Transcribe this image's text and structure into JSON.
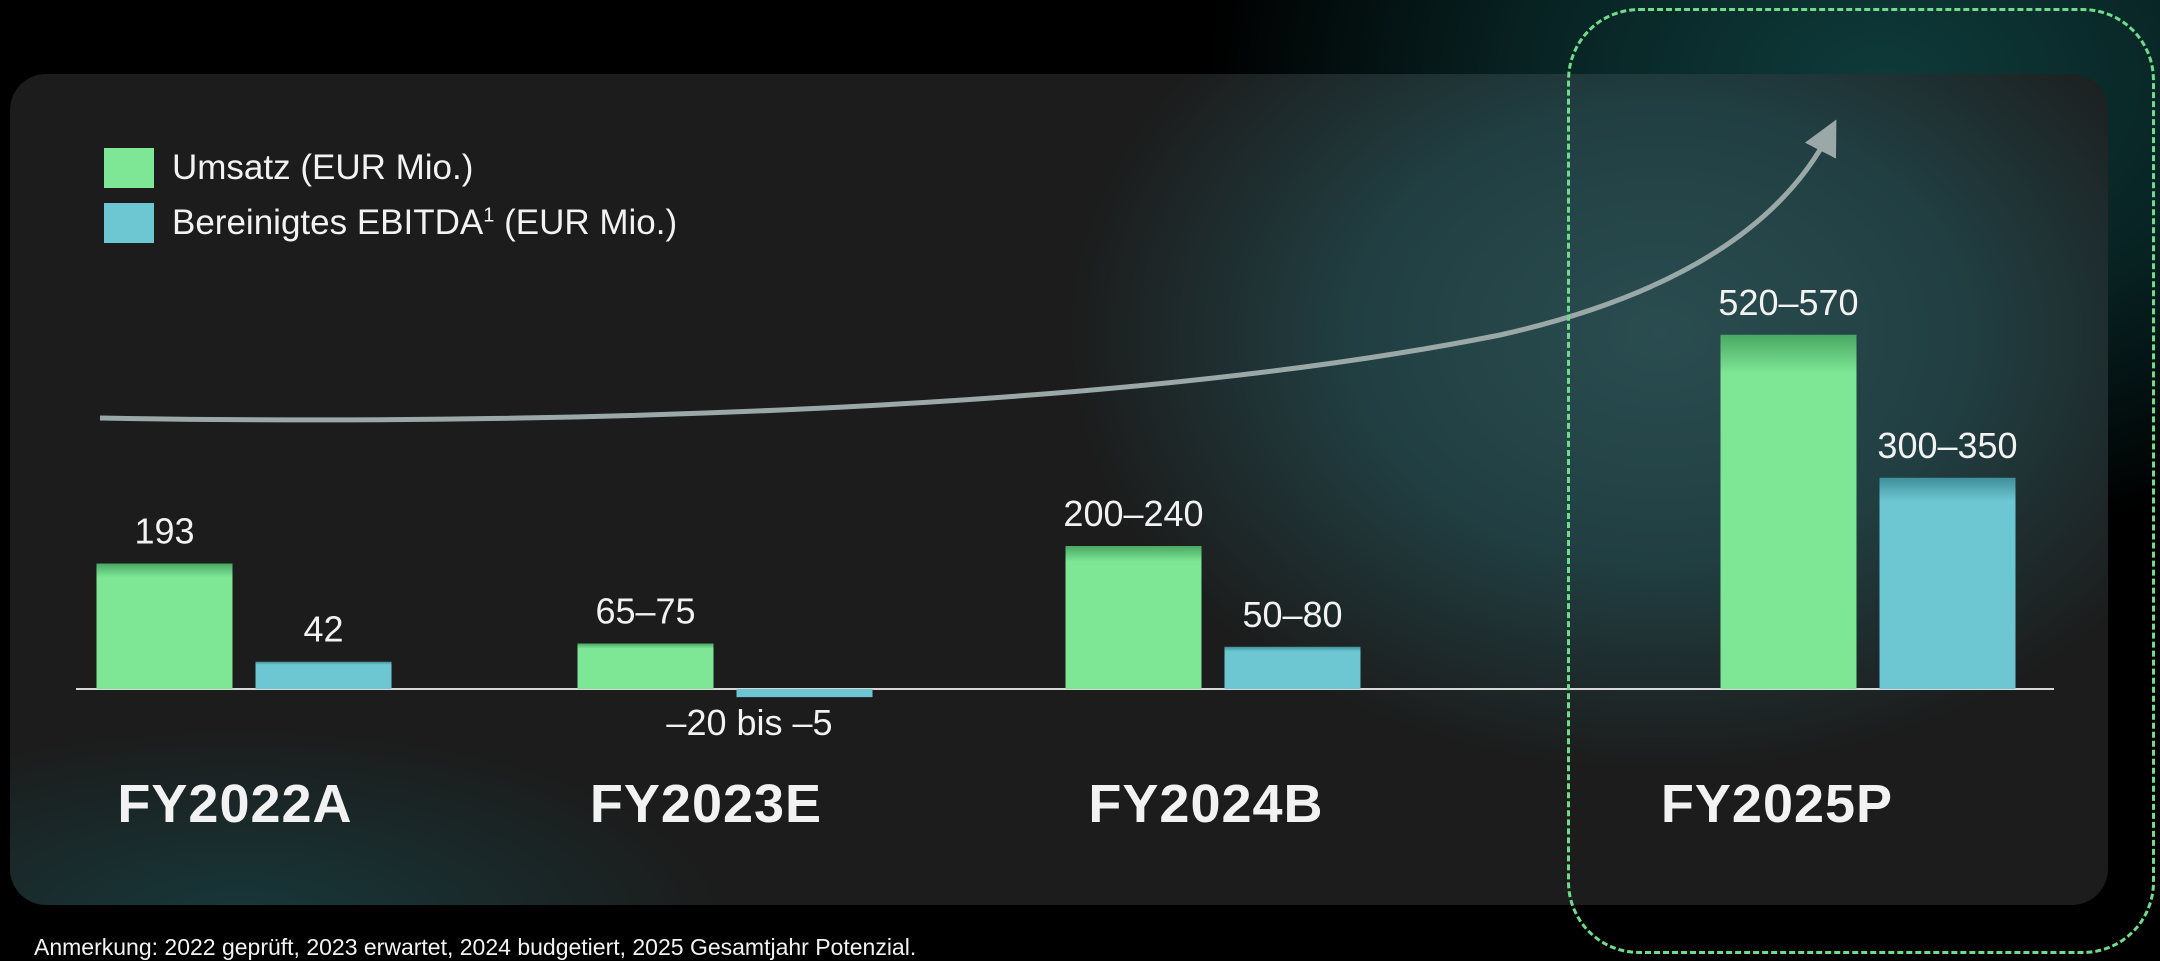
{
  "note": "Anmerkung: 2022 geprüft, 2023 erwartet, 2024 budgetiert, 2025 Gesamtjahr Potenzial.",
  "legend": {
    "revenue": "Umsatz (EUR Mio.)",
    "ebitda_prefix": "Bereinigtes EBITDA",
    "ebitda_sup": "1",
    "ebitda_suffix": " (EUR Mio.)"
  },
  "colors": {
    "revenue": "#7ee796",
    "ebitda": "#6cc7d2",
    "highlight": "#6fdc8c",
    "trend_arrow": "#9aa9a8"
  },
  "chart_data": {
    "type": "bar",
    "categories": [
      "FY2022A",
      "FY2023E",
      "FY2024B",
      "FY2025P"
    ],
    "highlighted_category": "FY2025P",
    "series": [
      {
        "name": "Umsatz (EUR Mio.)",
        "values": [
          193,
          70,
          220,
          545
        ],
        "ranges": [
          [
            193,
            193
          ],
          [
            65,
            75
          ],
          [
            200,
            240
          ],
          [
            520,
            570
          ]
        ],
        "labels": [
          "193",
          "65–75",
          "200–240",
          "520–570"
        ]
      },
      {
        "name": "Bereinigtes EBITDA¹ (EUR Mio.)",
        "values": [
          42,
          -12.5,
          65,
          325
        ],
        "ranges": [
          [
            42,
            42
          ],
          [
            -20,
            -5
          ],
          [
            50,
            80
          ],
          [
            300,
            350
          ]
        ],
        "labels": [
          "42",
          "–20 bis –5",
          "50–80",
          "300–350"
        ]
      }
    ],
    "ylim": [
      -25,
      600
    ],
    "grid": false,
    "legend_position": "top-left"
  }
}
